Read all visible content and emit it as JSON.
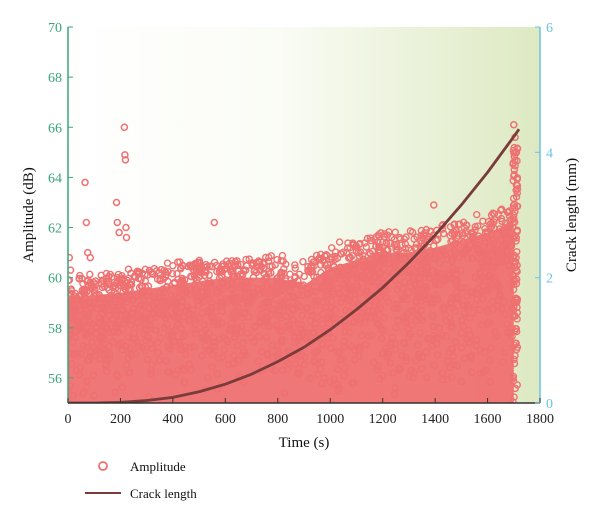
{
  "colors": {
    "left_axis": "#3aa57a",
    "right_axis": "#6cc3e0",
    "amplitude": "#ef7070",
    "crack": "#7a3b3b",
    "bg_start": "#ffffff",
    "bg_end": "#dde9c2"
  },
  "chart_data": {
    "type": "scatter",
    "title": "",
    "xlabel": "Time (s)",
    "ylabel_left": "Amplitude (dB)",
    "ylabel_right": "Crack length (mm)",
    "xlim": [
      0,
      1800
    ],
    "ylim_left": [
      55,
      70
    ],
    "ylim_right": [
      0,
      6
    ],
    "x_ticks": [
      0,
      200,
      400,
      600,
      800,
      1000,
      1200,
      1400,
      1600,
      1800
    ],
    "y_left_ticks": [
      56,
      58,
      60,
      62,
      64,
      66,
      68,
      70
    ],
    "y_right_ticks": [
      0,
      2,
      4,
      6
    ],
    "legend_position": "bottom-left",
    "grid": false,
    "series": [
      {
        "name": "Amplitude",
        "kind": "scatter",
        "axis": "left",
        "band": {
          "x": [
            0,
            200,
            400,
            600,
            800,
            900,
            1000,
            1100,
            1200,
            1300,
            1400,
            1500,
            1600,
            1700
          ],
          "y_min": [
            55,
            55,
            55,
            55,
            55,
            55,
            55,
            55,
            55,
            55,
            55,
            55,
            55,
            55
          ],
          "y_upper": [
            60.0,
            60.2,
            60.5,
            60.8,
            60.8,
            60.5,
            61.2,
            61.5,
            61.8,
            61.8,
            62.0,
            62.3,
            62.6,
            63.0
          ]
        },
        "points": [
          {
            "x": 5,
            "y": 60.8
          },
          {
            "x": 10,
            "y": 60.3
          },
          {
            "x": 65,
            "y": 63.8
          },
          {
            "x": 70,
            "y": 62.2
          },
          {
            "x": 75,
            "y": 61.0
          },
          {
            "x": 85,
            "y": 60.8
          },
          {
            "x": 185,
            "y": 63.0
          },
          {
            "x": 188,
            "y": 62.2
          },
          {
            "x": 195,
            "y": 61.8
          },
          {
            "x": 215,
            "y": 66.0
          },
          {
            "x": 217,
            "y": 64.9
          },
          {
            "x": 219,
            "y": 64.7
          },
          {
            "x": 221,
            "y": 62.0
          },
          {
            "x": 223,
            "y": 61.6
          },
          {
            "x": 558,
            "y": 62.2
          },
          {
            "x": 1395,
            "y": 62.9
          },
          {
            "x": 1700,
            "y": 66.1
          },
          {
            "x": 1705,
            "y": 65.6
          },
          {
            "x": 1708,
            "y": 65.0
          },
          {
            "x": 1702,
            "y": 64.3
          },
          {
            "x": 1710,
            "y": 63.7
          }
        ]
      },
      {
        "name": "Crack length",
        "kind": "line",
        "axis": "right",
        "x": [
          0,
          100,
          200,
          300,
          400,
          500,
          600,
          700,
          800,
          900,
          1000,
          1100,
          1200,
          1300,
          1400,
          1500,
          1600,
          1700,
          1720
        ],
        "y": [
          0.0,
          0.0,
          0.01,
          0.04,
          0.09,
          0.18,
          0.3,
          0.46,
          0.66,
          0.89,
          1.17,
          1.49,
          1.84,
          2.24,
          2.68,
          3.16,
          3.68,
          4.25,
          4.37
        ]
      }
    ]
  }
}
